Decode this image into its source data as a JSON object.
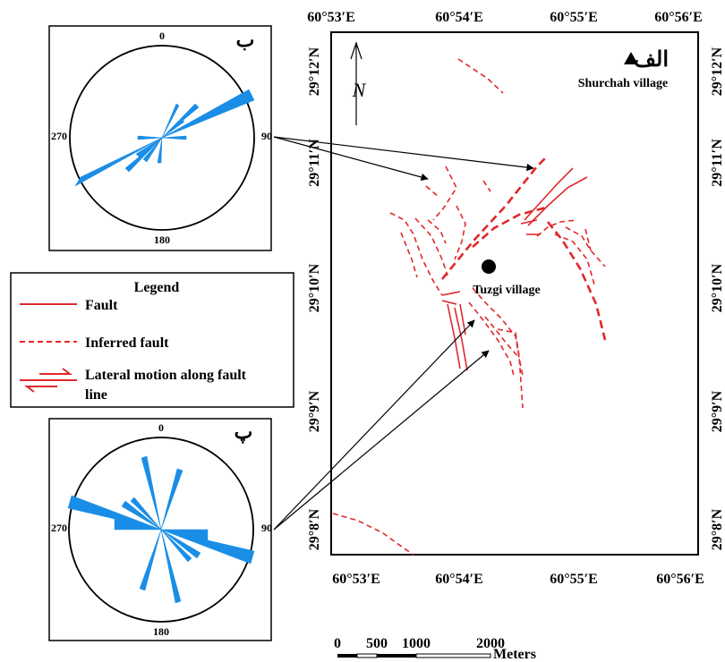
{
  "map": {
    "lon_top": [
      "60°53′E",
      "60°54′E",
      "60°55′E",
      "60°56′E"
    ],
    "lon_bottom": [
      "60°53′E",
      "60°54′E",
      "60°55′E",
      "60°56′E"
    ],
    "lat_left": [
      "29°12′N",
      "29°11′N",
      "29°10′N",
      "29°9′N",
      "29°8′N"
    ],
    "lat_right": [
      "29°12′N",
      "29°11′N",
      "29°10′N",
      "29°9′N",
      "29°8′N"
    ],
    "panel_label": "الف",
    "shurchah_label": "Shurchah village",
    "tuzgi_label": "Tuzgi village",
    "north_symbol": "N"
  },
  "rose_top": {
    "label": "ب",
    "north": "0",
    "east": "90",
    "south": "180",
    "west": "270"
  },
  "rose_bottom": {
    "label": "پ",
    "north": "0",
    "east": "90",
    "south": "180",
    "west": "270"
  },
  "legend": {
    "title": "Legend",
    "fault": "Fault",
    "inferred": "Inferred fault",
    "lateral_line1": "Lateral motion along fault",
    "lateral_line2": "line"
  },
  "scale": {
    "ticks": [
      "0",
      "500",
      "1000",
      "2000"
    ],
    "unit": "Meters"
  },
  "colors": {
    "fault": "#e0282c",
    "rose": "#1a8ee6",
    "frame": "#000000"
  }
}
